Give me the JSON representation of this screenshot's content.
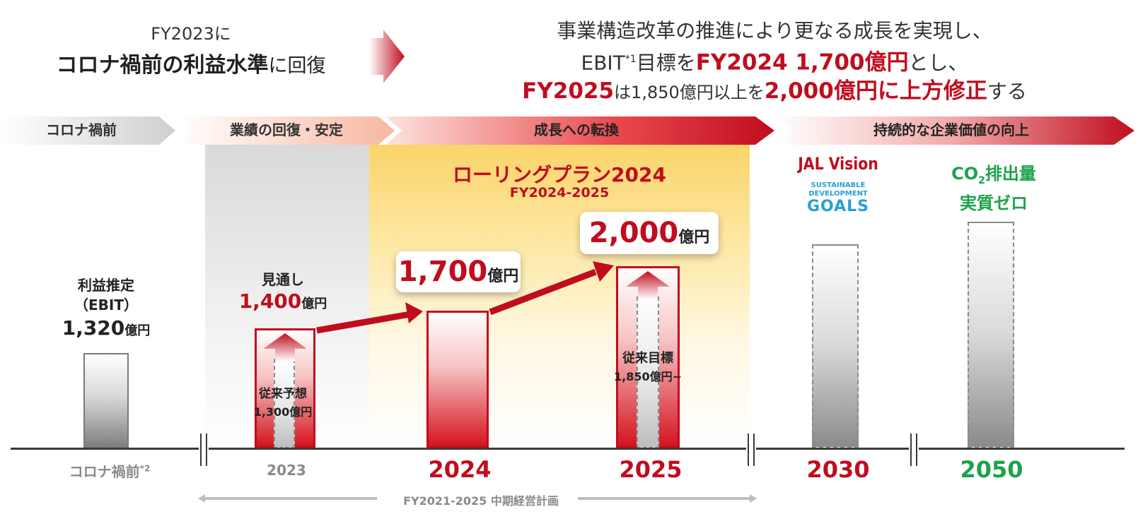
{
  "headline_left": {
    "line1": "FY2023に",
    "line2_bold": "コロナ禍前の利益水準",
    "line2_rest": "に回復"
  },
  "headline_right": {
    "line1": "事業構造改革の推進により更なる成長を実現し、",
    "line2_pre": "EBIT",
    "line2_sup": "*1",
    "line2_mid": "目標を",
    "line2_red": "FY2024 1,700億円",
    "line2_post": "とし、",
    "line3_red1": "FY2025",
    "line3_mid": "は1,850億円以上を",
    "line3_red2": "2,000億円",
    "line3_red3": "に上方修正",
    "line3_post": "する"
  },
  "phases": [
    "コロナ禍前",
    "業績の回復・安定",
    "成長への転換",
    "持続的な企業価値の向上"
  ],
  "rolling_plan": {
    "title": "ローリングプラン2024",
    "subtitle": "FY2024-2025"
  },
  "pre_covid": {
    "label1": "利益推定",
    "label2": "（EBIT）",
    "value": "1,320",
    "unit": "億円"
  },
  "fy2023": {
    "outlook_label": "見通し",
    "outlook_value": "1,400",
    "outlook_unit": "億円",
    "prev_label": "従来予想",
    "prev_value": "1,300億円"
  },
  "fy2024": {
    "value": "1,700",
    "unit": "億円"
  },
  "fy2025": {
    "value": "2,000",
    "unit": "億円",
    "prev_label": "従来目標",
    "prev_value": "1,850億円~"
  },
  "jal_vision": "JAL Vision",
  "sdgs": {
    "line1": "SUSTAINABLE",
    "line2": "DEVELOPMENT",
    "line3": "GOALS"
  },
  "co2": {
    "line1_pre": "CO",
    "line1_sub": "2",
    "line1_post": "排出量",
    "line2": "実質ゼロ"
  },
  "years": {
    "pre_covid": "コロナ禍前",
    "pre_covid_sup": "*2",
    "y2023": "2023",
    "y2024": "2024",
    "y2025": "2025",
    "y2030": "2030",
    "y2050": "2050"
  },
  "mid_term_plan": "FY2021-2025 中期経営計画",
  "colors": {
    "accent_red": "#c00d1e",
    "green": "#1aa34a",
    "grey": "#8a8a8a"
  }
}
